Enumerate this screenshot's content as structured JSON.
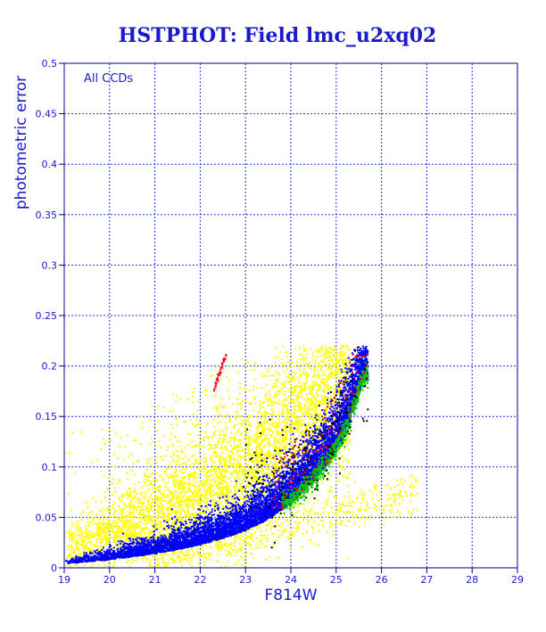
{
  "chart_data": {
    "type": "scatter",
    "title": "HSTPHOT: Field lmc_u2xq02",
    "xlabel": "F814W",
    "ylabel": "photometric error",
    "annotation": "All CCDs",
    "xlim": [
      19,
      29
    ],
    "ylim": [
      0,
      0.5
    ],
    "x_ticks": [
      "19",
      "20",
      "21",
      "22",
      "23",
      "24",
      "25",
      "26",
      "27",
      "28",
      "29"
    ],
    "y_ticks": [
      "0",
      "0.05",
      "0.1",
      "0.15",
      "0.2",
      "0.25",
      "0.3",
      "0.35",
      "0.4",
      "0.45",
      "0.5"
    ],
    "grid": true,
    "series": [
      {
        "color": "#ffff00",
        "trend": {
          "x": [
            19.0,
            19.5,
            20.0,
            20.5,
            21.0,
            21.5,
            22.0,
            22.5,
            23.0,
            23.5,
            24.0,
            24.5,
            25.0
          ],
          "y": [
            0.012,
            0.02,
            0.028,
            0.037,
            0.045,
            0.055,
            0.066,
            0.078,
            0.09,
            0.105,
            0.125,
            0.15,
            0.18
          ]
        }
      },
      {
        "color": "#0000ff",
        "trend": {
          "x": [
            19.0,
            19.5,
            20.0,
            20.5,
            21.0,
            21.5,
            22.0,
            22.5,
            23.0,
            23.5,
            24.0,
            24.5,
            25.0,
            25.3,
            25.6
          ],
          "y": [
            0.004,
            0.006,
            0.008,
            0.011,
            0.014,
            0.018,
            0.023,
            0.029,
            0.037,
            0.048,
            0.064,
            0.085,
            0.115,
            0.145,
            0.185
          ]
        }
      },
      {
        "color": "#00cc00",
        "trend": {
          "x": [
            24.0,
            24.5,
            25.0,
            25.3,
            25.6
          ],
          "y": [
            0.066,
            0.088,
            0.118,
            0.148,
            0.19
          ]
        }
      },
      {
        "color": "#ff0000",
        "trend": {
          "x": [
            22.3,
            22.4,
            22.5,
            22.6
          ],
          "y": [
            0.175,
            0.19,
            0.203,
            0.214
          ]
        }
      },
      {
        "color": "#000000",
        "trend": {
          "x": [
            24.0,
            24.5,
            25.0,
            25.5
          ],
          "y": [
            0.09,
            0.115,
            0.15,
            0.19
          ]
        }
      }
    ]
  }
}
